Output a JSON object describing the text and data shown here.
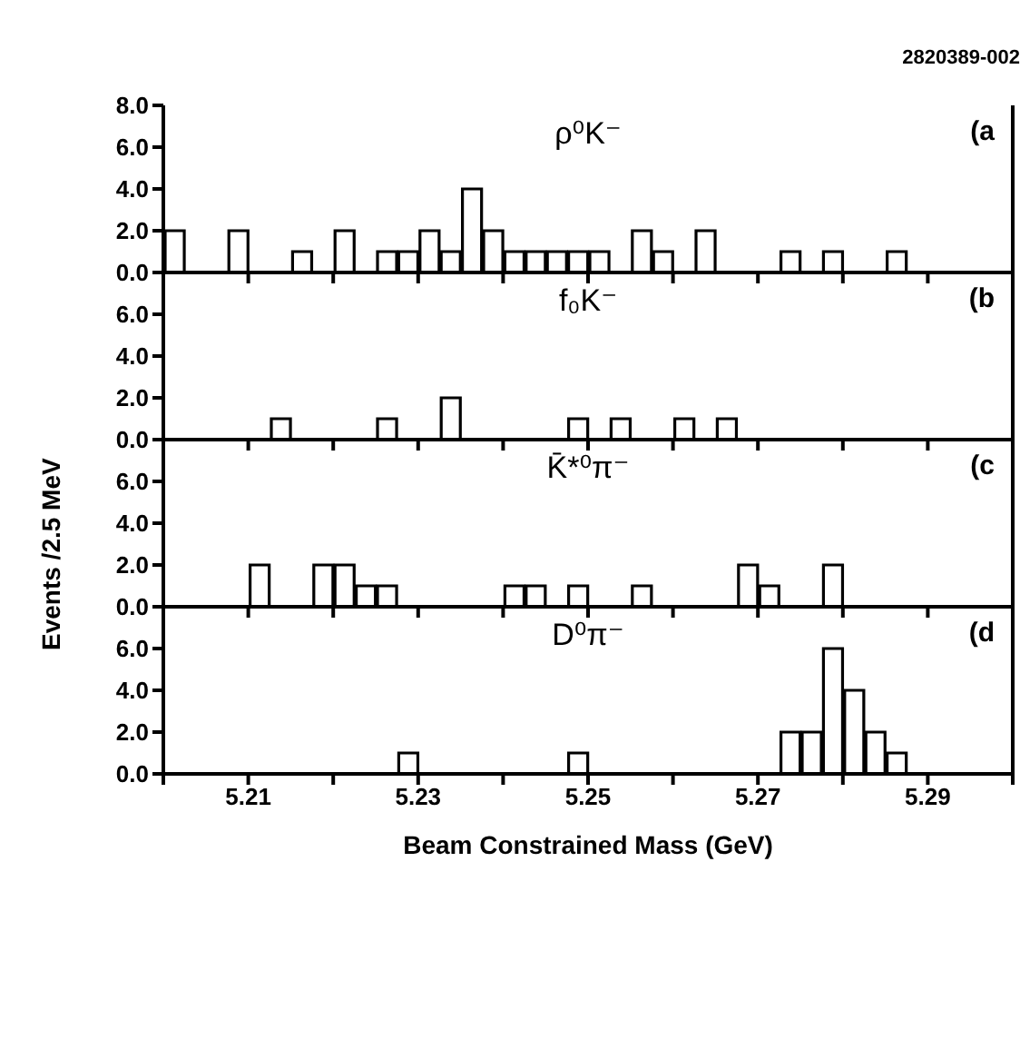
{
  "chart_data": [
    {
      "type": "histogram",
      "title": "ρ⁰K⁻",
      "subtitle": "(a",
      "annotations": [
        "2820389-002"
      ],
      "bins": [
        5.2,
        5.2025,
        5.205,
        5.2075,
        5.21,
        5.2125,
        5.215,
        5.2175,
        5.22,
        5.2225,
        5.225,
        5.2275,
        5.23,
        5.2325,
        5.235,
        5.2375,
        5.24,
        5.2425,
        5.245,
        5.2475,
        5.25,
        5.2525,
        5.255,
        5.2575,
        5.26,
        5.2625,
        5.265,
        5.2675,
        5.27,
        5.2725,
        5.275,
        5.2775,
        5.28,
        5.2825,
        5.285,
        5.2875,
        5.29,
        5.2925,
        5.295,
        5.2975,
        5.3
      ],
      "values": [
        2,
        0,
        0,
        2,
        0,
        0,
        1,
        0,
        2,
        0,
        1,
        1,
        2,
        1,
        4,
        2,
        1,
        1,
        1,
        1,
        1,
        0,
        2,
        1,
        0,
        2,
        0,
        0,
        0,
        1,
        0,
        1,
        0,
        0,
        1,
        0,
        0,
        0,
        0,
        0
      ],
      "color": "#000000",
      "xlim": [
        5.2,
        5.3
      ],
      "xticks": [
        {
          "value": 5.2,
          "label": null
        },
        {
          "value": 5.21,
          "label": null
        },
        {
          "value": 5.22,
          "label": null
        },
        {
          "value": 5.23,
          "label": null
        },
        {
          "value": 5.24,
          "label": null
        },
        {
          "value": 5.25,
          "label": null
        },
        {
          "value": 5.26,
          "label": null
        },
        {
          "value": 5.27,
          "label": null
        },
        {
          "value": 5.28,
          "label": null
        },
        {
          "value": 5.29,
          "label": null
        },
        {
          "value": 5.3,
          "label": null
        }
      ],
      "ylim": [
        0,
        8
      ],
      "yticks": [
        {
          "value": 0,
          "label": "0.0"
        },
        {
          "value": 2,
          "label": "2.0"
        },
        {
          "value": 4,
          "label": "4.0"
        },
        {
          "value": 6,
          "label": "6.0"
        },
        {
          "value": 8,
          "label": "8.0"
        }
      ],
      "tick_labels": "y",
      "grid": false,
      "legend": false
    },
    {
      "type": "histogram",
      "title": "f₀K⁻",
      "subtitle": "(b",
      "ylabel": "Events /2.5 MeV",
      "bins": [
        5.2,
        5.2025,
        5.205,
        5.2075,
        5.21,
        5.2125,
        5.215,
        5.2175,
        5.22,
        5.2225,
        5.225,
        5.2275,
        5.23,
        5.2325,
        5.235,
        5.2375,
        5.24,
        5.2425,
        5.245,
        5.2475,
        5.25,
        5.2525,
        5.255,
        5.2575,
        5.26,
        5.2625,
        5.265,
        5.2675,
        5.27,
        5.2725,
        5.275,
        5.2775,
        5.28,
        5.2825,
        5.285,
        5.2875,
        5.29,
        5.2925,
        5.295,
        5.2975,
        5.3
      ],
      "values": [
        0,
        0,
        0,
        0,
        0,
        1,
        0,
        0,
        0,
        0,
        1,
        0,
        0,
        2,
        0,
        0,
        0,
        0,
        0,
        1,
        0,
        1,
        0,
        0,
        1,
        0,
        1,
        0,
        0,
        0,
        0,
        0,
        0,
        0,
        0,
        0,
        0,
        0,
        0,
        0
      ],
      "color": "#000000",
      "xlim": [
        5.2,
        5.3
      ],
      "xticks": [
        {
          "value": 5.2,
          "label": null
        },
        {
          "value": 5.21,
          "label": null
        },
        {
          "value": 5.22,
          "label": null
        },
        {
          "value": 5.23,
          "label": null
        },
        {
          "value": 5.24,
          "label": null
        },
        {
          "value": 5.25,
          "label": null
        },
        {
          "value": 5.26,
          "label": null
        },
        {
          "value": 5.27,
          "label": null
        },
        {
          "value": 5.28,
          "label": null
        },
        {
          "value": 5.29,
          "label": null
        },
        {
          "value": 5.3,
          "label": null
        }
      ],
      "ylim": [
        0,
        8
      ],
      "yticks": [
        {
          "value": 0,
          "label": "0.0"
        },
        {
          "value": 2,
          "label": "2.0"
        },
        {
          "value": 4,
          "label": "4.0"
        },
        {
          "value": 6,
          "label": "6.0"
        }
      ],
      "tick_labels": "y",
      "grid": false,
      "legend": false
    },
    {
      "type": "histogram",
      "title": "K̄*⁰π⁻",
      "subtitle": "(c",
      "bins": [
        5.2,
        5.2025,
        5.205,
        5.2075,
        5.21,
        5.2125,
        5.215,
        5.2175,
        5.22,
        5.2225,
        5.225,
        5.2275,
        5.23,
        5.2325,
        5.235,
        5.2375,
        5.24,
        5.2425,
        5.245,
        5.2475,
        5.25,
        5.2525,
        5.255,
        5.2575,
        5.26,
        5.2625,
        5.265,
        5.2675,
        5.27,
        5.2725,
        5.275,
        5.2775,
        5.28,
        5.2825,
        5.285,
        5.2875,
        5.29,
        5.2925,
        5.295,
        5.2975,
        5.3
      ],
      "values": [
        0,
        0,
        0,
        0,
        2,
        0,
        0,
        2,
        2,
        1,
        1,
        0,
        0,
        0,
        0,
        0,
        1,
        1,
        0,
        1,
        0,
        0,
        1,
        0,
        0,
        0,
        0,
        2,
        1,
        0,
        0,
        2,
        0,
        0,
        0,
        0,
        0,
        0,
        0,
        0
      ],
      "color": "#000000",
      "xlim": [
        5.2,
        5.3
      ],
      "xticks": [
        {
          "value": 5.2,
          "label": null
        },
        {
          "value": 5.21,
          "label": null
        },
        {
          "value": 5.22,
          "label": null
        },
        {
          "value": 5.23,
          "label": null
        },
        {
          "value": 5.24,
          "label": null
        },
        {
          "value": 5.25,
          "label": null
        },
        {
          "value": 5.26,
          "label": null
        },
        {
          "value": 5.27,
          "label": null
        },
        {
          "value": 5.28,
          "label": null
        },
        {
          "value": 5.29,
          "label": null
        },
        {
          "value": 5.3,
          "label": null
        }
      ],
      "ylim": [
        0,
        8
      ],
      "yticks": [
        {
          "value": 0,
          "label": "0.0"
        },
        {
          "value": 2,
          "label": "2.0"
        },
        {
          "value": 4,
          "label": "4.0"
        },
        {
          "value": 6,
          "label": "6.0"
        }
      ],
      "tick_labels": "y",
      "grid": false,
      "legend": false
    },
    {
      "type": "histogram",
      "title": "D⁰π⁻",
      "subtitle": "(d",
      "xlabel": "Beam Constrained Mass (GeV)",
      "bins": [
        5.2,
        5.2025,
        5.205,
        5.2075,
        5.21,
        5.2125,
        5.215,
        5.2175,
        5.22,
        5.2225,
        5.225,
        5.2275,
        5.23,
        5.2325,
        5.235,
        5.2375,
        5.24,
        5.2425,
        5.245,
        5.2475,
        5.25,
        5.2525,
        5.255,
        5.2575,
        5.26,
        5.2625,
        5.265,
        5.2675,
        5.27,
        5.2725,
        5.275,
        5.2775,
        5.28,
        5.2825,
        5.285,
        5.2875,
        5.29,
        5.2925,
        5.295,
        5.2975,
        5.3
      ],
      "values": [
        0,
        0,
        0,
        0,
        0,
        0,
        0,
        0,
        0,
        0,
        0,
        1,
        0,
        0,
        0,
        0,
        0,
        0,
        0,
        1,
        0,
        0,
        0,
        0,
        0,
        0,
        0,
        0,
        0,
        2,
        2,
        6,
        4,
        2,
        1,
        0,
        0,
        0,
        0,
        0
      ],
      "color": "#000000",
      "xlim": [
        5.2,
        5.3
      ],
      "xticks": [
        {
          "value": 5.2,
          "label": null
        },
        5.21,
        {
          "value": 5.22,
          "label": null
        },
        5.23,
        {
          "value": 5.24,
          "label": null
        },
        5.25,
        {
          "value": 5.26,
          "label": null
        },
        5.27,
        {
          "value": 5.28,
          "label": null
        },
        5.29,
        {
          "value": 5.3,
          "label": null
        }
      ],
      "ylim": [
        0,
        8
      ],
      "yticks": [
        {
          "value": 0,
          "label": "0.0"
        },
        {
          "value": 2,
          "label": "2.0"
        },
        {
          "value": 4,
          "label": "4.0"
        },
        {
          "value": 6,
          "label": "6.0"
        }
      ],
      "grid": false,
      "legend": false
    }
  ]
}
